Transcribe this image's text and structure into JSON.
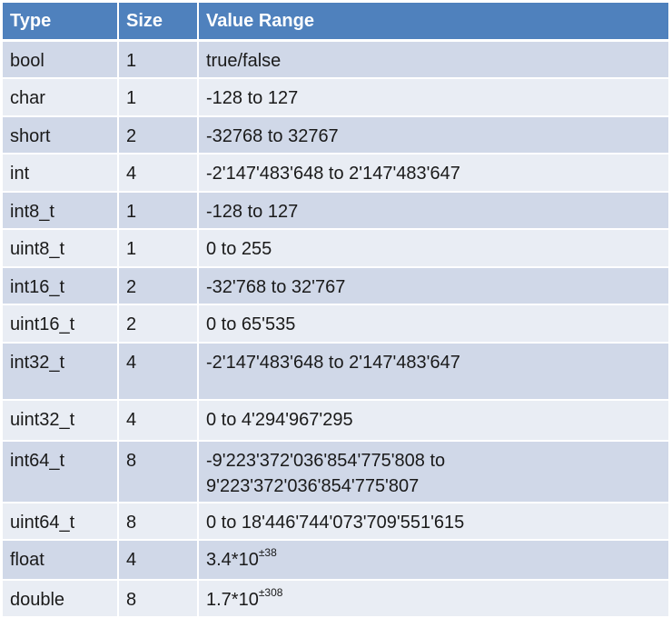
{
  "header": {
    "type": "Type",
    "size": "Size",
    "range": "Value Range"
  },
  "rows": [
    {
      "type": "bool",
      "size": "1",
      "range": "true/false"
    },
    {
      "type": "char",
      "size": "1",
      "range": "-128 to 127"
    },
    {
      "type": "short",
      "size": "2",
      "range": "-32768 to 32767"
    },
    {
      "type": "int",
      "size": "4",
      "range": "-2'147'483'648 to 2'147'483'647"
    },
    {
      "type": "int8_t",
      "size": "1",
      "range": "-128 to 127"
    },
    {
      "type": "uint8_t",
      "size": "1",
      "range": "0 to 255"
    },
    {
      "type": "int16_t",
      "size": "2",
      "range": "-32'768 to 32'767"
    },
    {
      "type": "uint16_t",
      "size": "2",
      "range": "0 to 65'535"
    },
    {
      "type": "int32_t",
      "size": "4",
      "range": "-2'147'483'648 to 2'147'483'647"
    },
    {
      "type": "uint32_t",
      "size": "4",
      "range": "0 to 4'294'967'295"
    },
    {
      "type": "int64_t",
      "size": "8",
      "range": "-9'223'372'036'854'775'808 to",
      "range_line2": "9'223'372'036'854'775'807"
    },
    {
      "type": "uint64_t",
      "size": "8",
      "range": "0 to 18'446'744'073'709'551'615"
    },
    {
      "type": "float",
      "size": "4",
      "range": "3.4*10",
      "range_exp": "±38"
    },
    {
      "type": "double",
      "size": "8",
      "range": "1.7*10",
      "range_exp": "±308"
    }
  ]
}
